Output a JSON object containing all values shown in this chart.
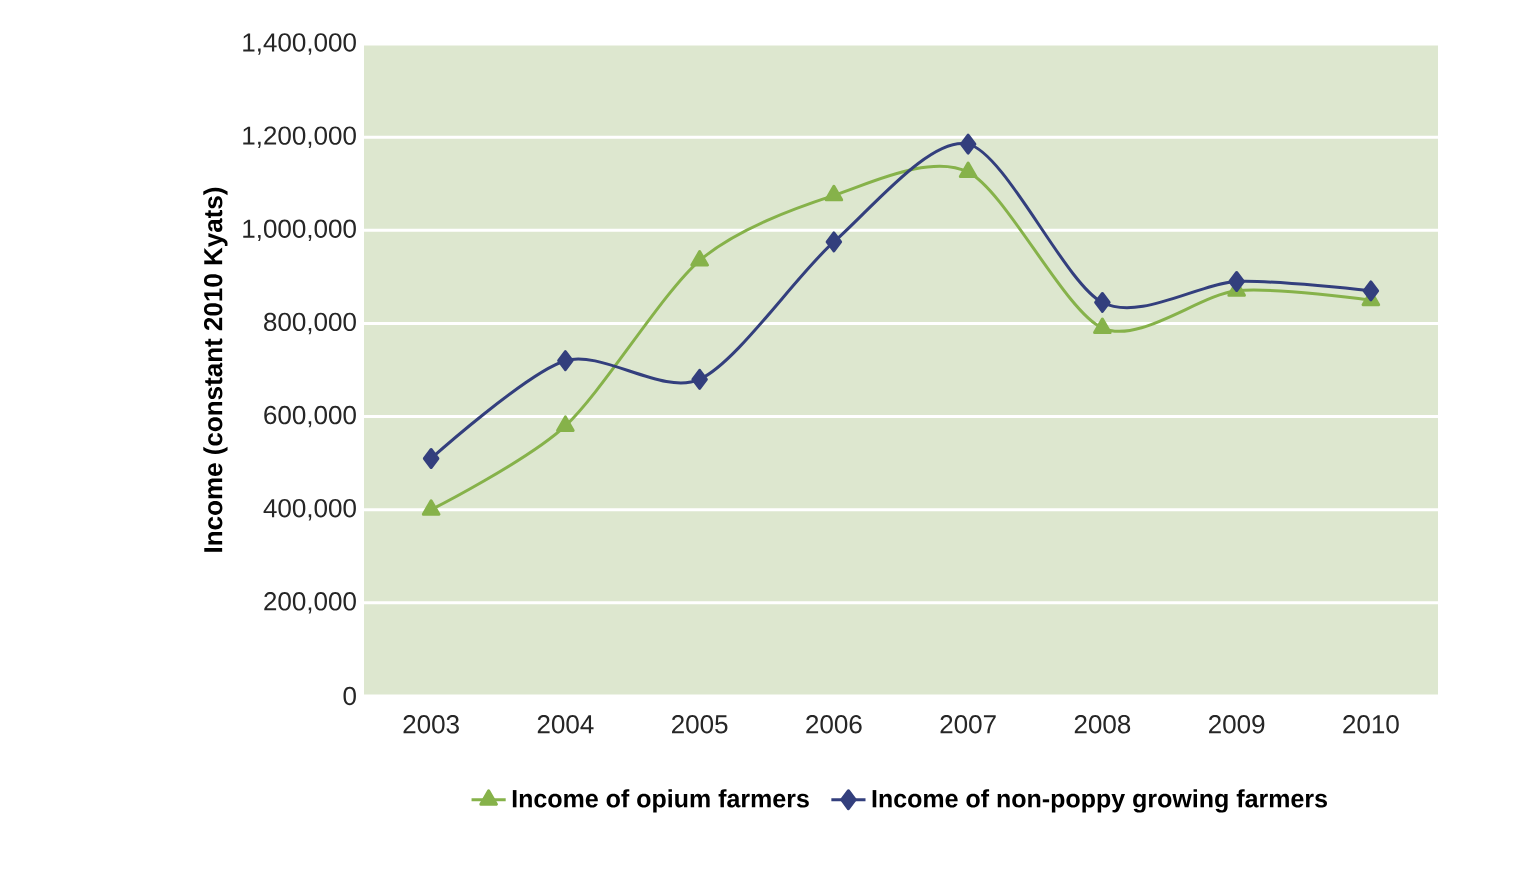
{
  "chart_data": {
    "type": "line",
    "ylabel": "Income (constant 2010 Kyats)",
    "categories": [
      "2003",
      "2004",
      "2005",
      "2006",
      "2007",
      "2008",
      "2009",
      "2010"
    ],
    "series": [
      {
        "name": "Income of opium farmers",
        "color": "#86b24a",
        "marker": "triangle",
        "values": [
          400000,
          580000,
          935000,
          1075000,
          1125000,
          790000,
          870000,
          850000
        ]
      },
      {
        "name": "Income of  non-poppy growing farmers",
        "color": "#333f7d",
        "marker": "diamond",
        "values": [
          510000,
          720000,
          680000,
          975000,
          1185000,
          845000,
          890000,
          870000
        ]
      }
    ],
    "ylim": [
      0,
      1400000
    ],
    "yticks": [
      0,
      {
        "value": 200000,
        "label": "200,000"
      },
      {
        "value": 400000,
        "label": "400,000"
      },
      {
        "value": 600000,
        "label": "600,000"
      },
      {
        "value": 800000,
        "label": "800,000"
      },
      {
        "value": 1000000,
        "label": "1,000,000"
      },
      {
        "value": 1200000,
        "label": "1,200,000"
      },
      {
        "value": 1400000,
        "label": "1,400,000"
      }
    ],
    "grid": "y",
    "legend": "bottom",
    "line_style": "solid"
  }
}
